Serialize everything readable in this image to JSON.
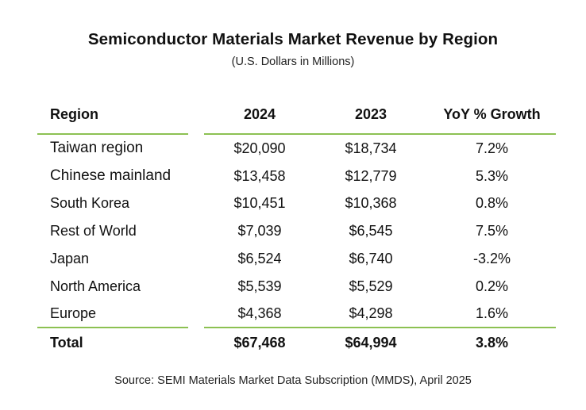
{
  "title": "Semiconductor Materials Market Revenue by Region",
  "subtitle": "(U.S. Dollars in Millions)",
  "columns": [
    "Region",
    "2024",
    "2023",
    "YoY % Growth"
  ],
  "rows": [
    [
      "Taiwan region",
      "$20,090",
      "$18,734",
      "7.2%"
    ],
    [
      "Chinese mainland",
      "$13,458",
      "$12,779",
      "5.3%"
    ],
    [
      "South Korea",
      "$10,451",
      "$10,368",
      "0.8%"
    ],
    [
      "Rest of World",
      "$7,039",
      "$6,545",
      "7.5%"
    ],
    [
      "Japan",
      "$6,524",
      "$6,740",
      "-3.2%"
    ],
    [
      "North America",
      "$5,539",
      "$5,529",
      "0.2%"
    ],
    [
      "Europe",
      "$4,368",
      "$4,298",
      "1.6%"
    ]
  ],
  "total": [
    "Total",
    "$67,468",
    "$64,994",
    "3.8%"
  ],
  "source": "Source: SEMI Materials Market Data Subscription (MMDS), April 2025",
  "colors": {
    "rule": "#8cc152",
    "text": "#111111"
  }
}
